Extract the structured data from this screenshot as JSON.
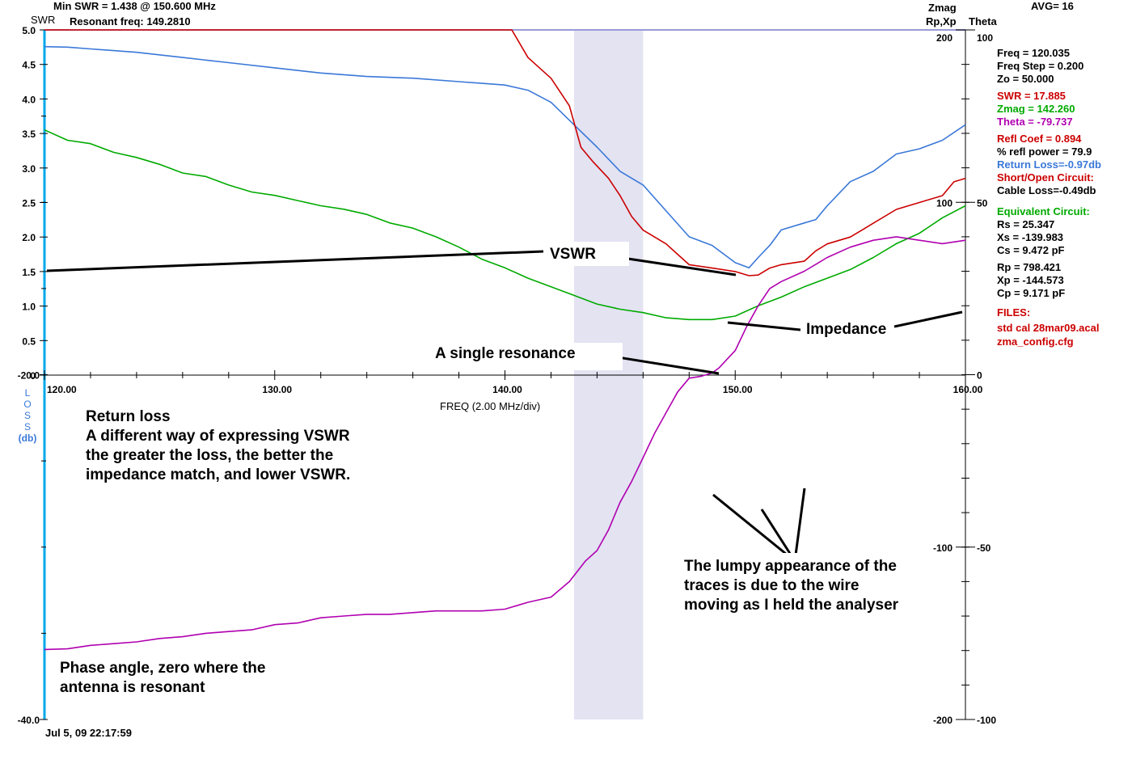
{
  "header": {
    "min_swr_text": "Min SWR =  1.438 @  150.600 MHz",
    "resonant_text": "Resonant freq:  149.2810",
    "swr_label": "SWR",
    "zmag_label": "Zmag",
    "rpxp_label": "Rp,Xp",
    "theta_label": "Theta",
    "avg_label": "AVG=  16"
  },
  "footer": {
    "timestamp": "Jul 5, 09  22:17:59"
  },
  "xaxis_title": "FREQ (2.00 MHz/div)",
  "loss_axis_label": [
    "L",
    "O",
    "S",
    "S",
    "(db)"
  ],
  "readout": [
    {
      "text": "Freq =  120.035",
      "color": "#000000"
    },
    {
      "text": "Freq Step =  0.200",
      "color": "#000000"
    },
    {
      "text": "Zo =    50.000",
      "color": "#000000"
    },
    {
      "text": "SWR  =   17.885",
      "color": "#cc0000"
    },
    {
      "text": "Zmag =  142.260",
      "color": "#00aa00"
    },
    {
      "text": "Theta =  -79.737",
      "color": "#b000b0"
    },
    {
      "text": "Refl Coef   = 0.894",
      "color": "#cc0000"
    },
    {
      "text": "% refl power = 79.9",
      "color": "#000000"
    },
    {
      "text": "Return Loss=-0.97db",
      "color": "#3a78d8"
    },
    {
      "text": "Short/Open Circuit:",
      "color": "#cc0000"
    },
    {
      "text": "Cable Loss=-0.49db",
      "color": "#000000"
    },
    {
      "text": "Equivalent Circuit:",
      "color": "#00aa00"
    },
    {
      "text": "Rs =   25.347",
      "color": "#000000"
    },
    {
      "text": "Xs = -139.983",
      "color": "#000000"
    },
    {
      "text": "Cs =    9.472  pF",
      "color": "#000000"
    },
    {
      "text": "Rp =  798.421",
      "color": "#000000"
    },
    {
      "text": "Xp = -144.573",
      "color": "#000000"
    },
    {
      "text": "Cp =    9.171  pF",
      "color": "#000000"
    },
    {
      "text": "FILES:",
      "color": "#cc0000"
    },
    {
      "text": "std cal 28mar09.acal",
      "color": "#cc0000"
    },
    {
      "text": "zma_config.cfg",
      "color": "#cc0000"
    }
  ],
  "annotations": {
    "vswr": "VSWR",
    "impedance": "Impedance",
    "single_resonance": "A single resonance",
    "return_loss": [
      "Return loss",
      "A different way of expressing VSWR",
      "the greater the loss, the better the",
      "impedance match, and lower VSWR."
    ],
    "lumpy": [
      "The lumpy appearance of the",
      "traces is due to the wire",
      "moving as I held the analyser"
    ],
    "phase": [
      "Phase angle, zero where the",
      "antenna is resonant"
    ]
  },
  "colors": {
    "swr": "#cc0000",
    "zmag": "#00aa00",
    "theta": "#b000b0",
    "return_loss": "#3a78d8",
    "band": "#e3e3f2",
    "rpxp": "#e09000",
    "grid": "#000000"
  },
  "chart_data": {
    "type": "line",
    "xlim": [
      120,
      160
    ],
    "x_ticks": [
      "120.00",
      "130.00",
      "140.00",
      "150.00",
      "160.00"
    ],
    "swr_axis": {
      "lim": [
        0,
        5
      ],
      "ticks": [
        "0",
        "0.5",
        "1.0",
        "1.5",
        "2.0",
        "2.5",
        "3.0",
        "3.5",
        "4.0",
        "4.5",
        "5.0"
      ]
    },
    "loss_axis": {
      "lim": [
        -40,
        0
      ],
      "ticks": [
        "-20.0",
        "-40.0"
      ]
    },
    "zmag_axis": {
      "lim": [
        -200,
        200
      ],
      "ticks": [
        "200",
        "100",
        "-100",
        "-200"
      ]
    },
    "theta_axis": {
      "lim": [
        -100,
        100
      ],
      "ticks": [
        "100",
        "50",
        "0",
        "-50",
        "-100"
      ]
    },
    "band": [
      143.0,
      146.0
    ],
    "series": [
      {
        "name": "SWR",
        "axis": "swr",
        "x": [
          120,
          140.3,
          141,
          142,
          142.8,
          143.3,
          143.8,
          144.5,
          145,
          145.5,
          146,
          147,
          147.5,
          148,
          149,
          150,
          150.6,
          151,
          151.5,
          152,
          153,
          153.5,
          154,
          155,
          155.5,
          156,
          157,
          158,
          159,
          159.5,
          160
        ],
        "y": [
          5.0,
          5.0,
          4.6,
          4.3,
          3.9,
          3.3,
          3.1,
          2.85,
          2.6,
          2.3,
          2.1,
          1.9,
          1.75,
          1.6,
          1.55,
          1.5,
          1.44,
          1.45,
          1.55,
          1.6,
          1.65,
          1.8,
          1.9,
          2.0,
          2.1,
          2.2,
          2.4,
          2.5,
          2.6,
          2.8,
          2.85
        ]
      },
      {
        "name": "Zmag",
        "axis": "zmag",
        "x": [
          120,
          121,
          122,
          123,
          124,
          125,
          126,
          127,
          128,
          129,
          130,
          131,
          132,
          133,
          134,
          135,
          136,
          137,
          138,
          139,
          140,
          141,
          142,
          143,
          144,
          145,
          146,
          147,
          148,
          149,
          150,
          151,
          152,
          153,
          154,
          155,
          156,
          157,
          158,
          159,
          160
        ],
        "y": [
          142,
          136,
          134,
          129,
          126,
          122,
          117,
          115,
          110,
          106,
          104,
          101,
          98,
          96,
          93,
          88,
          85,
          80,
          74,
          67,
          62,
          56,
          51,
          46,
          41,
          38,
          36,
          33,
          32,
          32,
          34,
          40,
          45,
          51,
          56,
          61,
          68,
          76,
          82,
          91,
          98
        ]
      },
      {
        "name": "Theta",
        "axis": "theta",
        "x": [
          120,
          121,
          122,
          123,
          124,
          125,
          126,
          127,
          128,
          129,
          130,
          131,
          132,
          133,
          134,
          135,
          136,
          137,
          138,
          139,
          140,
          141,
          142,
          142.8,
          143.5,
          144,
          144.5,
          145,
          145.5,
          146,
          146.5,
          147,
          147.5,
          148,
          148.5,
          149,
          149.3,
          150,
          150.5,
          151,
          151.5,
          152,
          153,
          154,
          155,
          156,
          157,
          158,
          159,
          160
        ],
        "y": [
          -79.7,
          -79.5,
          -78.5,
          -78,
          -77.5,
          -76.5,
          -76,
          -75,
          -74.5,
          -74,
          -72.5,
          -72,
          -70.5,
          -70,
          -69.5,
          -69.5,
          -69,
          -68.5,
          -68.5,
          -68.5,
          -68,
          -66,
          -64.5,
          -60,
          -54,
          -51,
          -45,
          -37,
          -31,
          -24,
          -17,
          -11,
          -5,
          -1,
          -0.5,
          0.5,
          2,
          7,
          14,
          20,
          25,
          27,
          30,
          34,
          37,
          39,
          40,
          39,
          38,
          39
        ]
      },
      {
        "name": "Return Loss",
        "axis": "loss",
        "x": [
          120,
          121,
          122,
          124,
          126,
          128,
          130,
          132,
          134,
          136,
          138,
          139,
          140,
          141,
          142,
          143,
          144,
          145,
          146,
          147,
          148,
          149,
          150,
          150.6,
          151,
          151.5,
          152,
          153,
          153.5,
          154,
          155,
          156,
          157,
          158,
          159,
          160
        ],
        "y": [
          -0.97,
          -1.0,
          -1.1,
          -1.3,
          -1.6,
          -1.9,
          -2.2,
          -2.5,
          -2.7,
          -2.8,
          -3.0,
          -3.1,
          -3.2,
          -3.5,
          -4.2,
          -5.5,
          -6.8,
          -8.2,
          -9.0,
          -10.5,
          -12.0,
          -12.5,
          -13.5,
          -13.8,
          -13.2,
          -12.5,
          -11.6,
          -11.2,
          -11.0,
          -10.2,
          -8.8,
          -8.2,
          -7.2,
          -6.9,
          -6.4,
          -5.5
        ]
      }
    ]
  }
}
